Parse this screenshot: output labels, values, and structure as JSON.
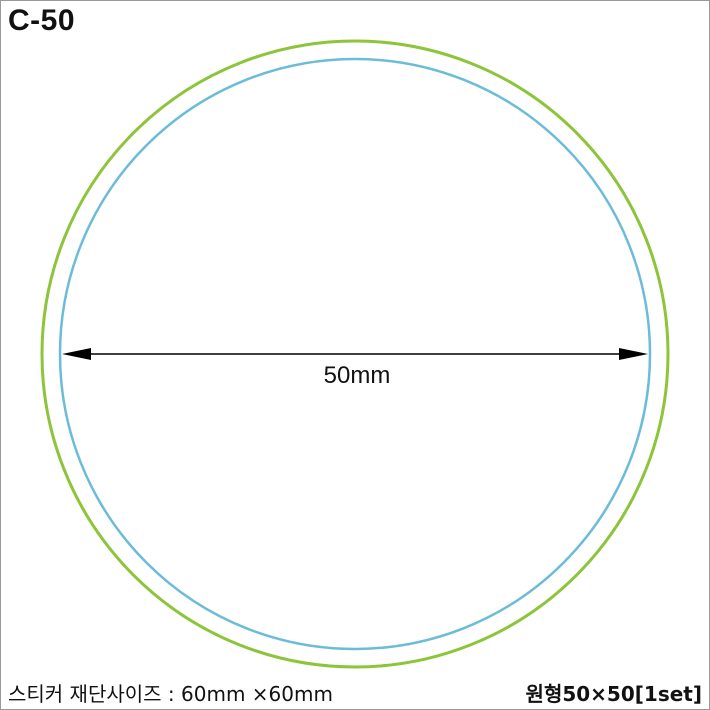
{
  "header": {
    "code": "C-50"
  },
  "diagram": {
    "dimension_label": "50mm",
    "outer_circle_color": "#8cc43a",
    "inner_circle_color": "#6cbcd8",
    "arrow_color": "#000000"
  },
  "footer": {
    "cut_size_text": "스티커 재단사이즈 : 60mm ×60mm",
    "product_name": "원형50×50[1set]"
  }
}
